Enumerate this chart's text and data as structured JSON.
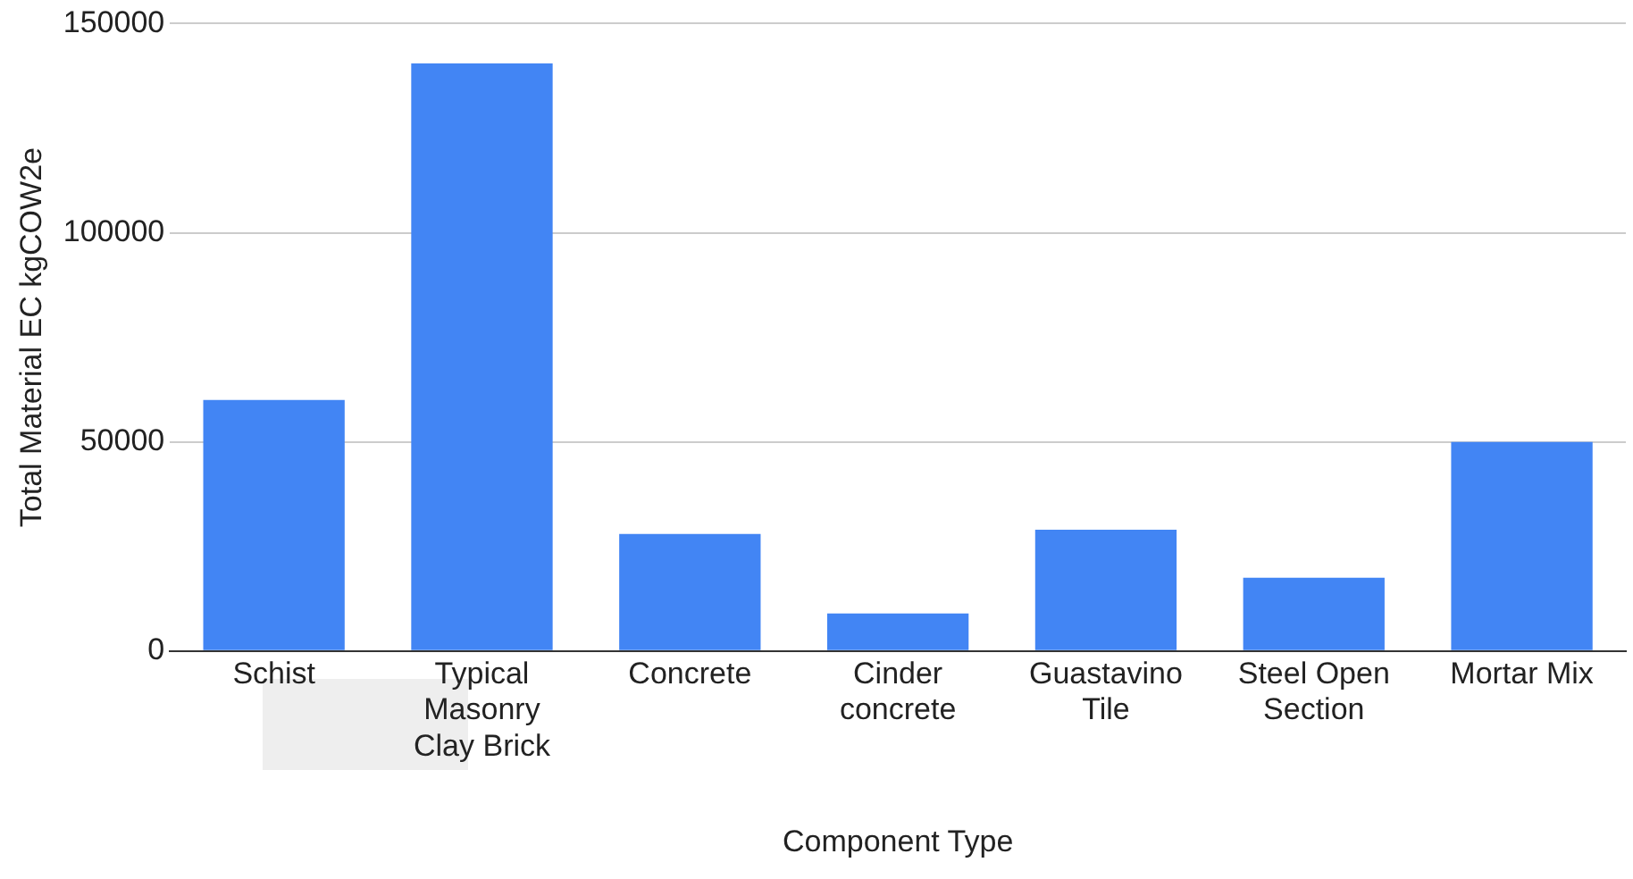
{
  "chart_data": {
    "type": "bar",
    "xlabel": "Component Type",
    "ylabel": "Total Material EC kgCOW2e",
    "categories": [
      "Schist",
      "Typical Masonry Clay Brick",
      "Concrete",
      "Cinder concrete",
      "Guastavino Tile",
      "Steel Open Section",
      "Mortar Mix"
    ],
    "values": [
      60000,
      140500,
      28000,
      9000,
      29000,
      17500,
      50000
    ],
    "color": "#4285f4",
    "ylim": [
      0,
      150000
    ],
    "yticks": [
      0,
      50000,
      100000,
      150000
    ],
    "grid": "y",
    "legend": false
  }
}
